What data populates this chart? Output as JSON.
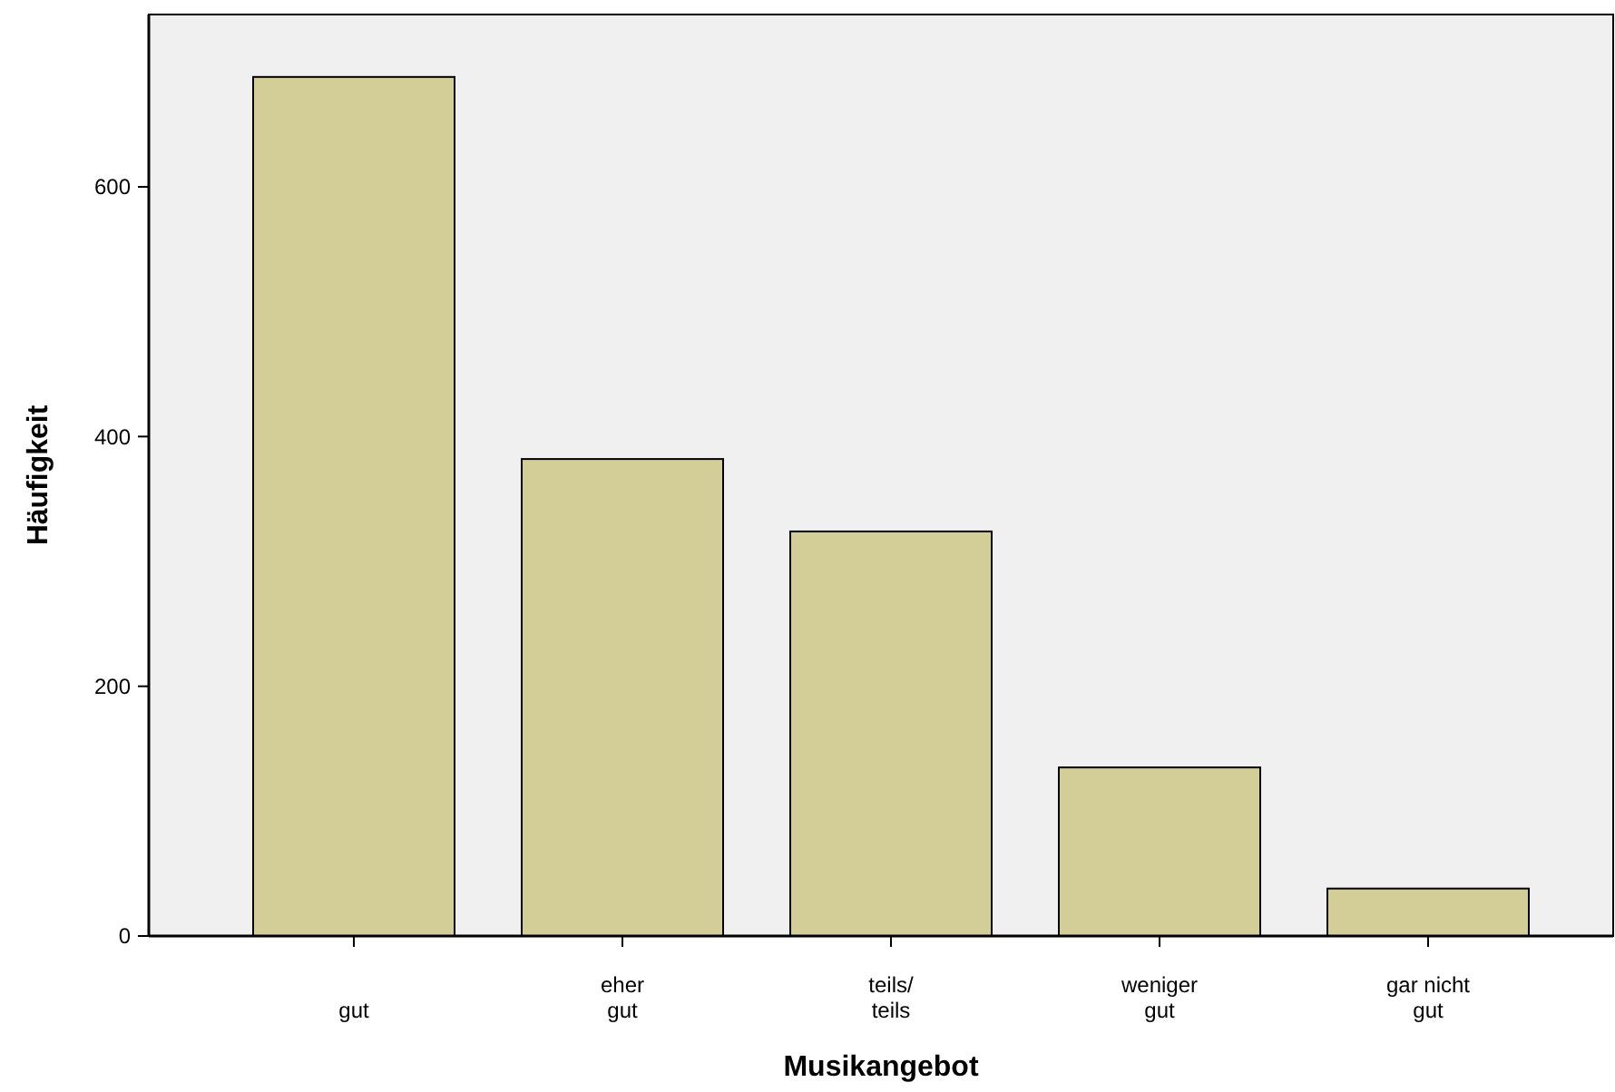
{
  "chart_data": {
    "type": "bar",
    "xlabel": "Musikangebot",
    "ylabel": "Häufigkeit",
    "categories": [
      "gut",
      "eher\ngut",
      "teils/\nteils",
      "weniger\ngut",
      "gar nicht\ngut"
    ],
    "values": [
      688,
      382,
      324,
      135,
      38
    ],
    "color": "#d3ce98",
    "ylim": [
      0,
      738
    ],
    "yticks": [
      0,
      200,
      400,
      600
    ],
    "grid": false
  }
}
